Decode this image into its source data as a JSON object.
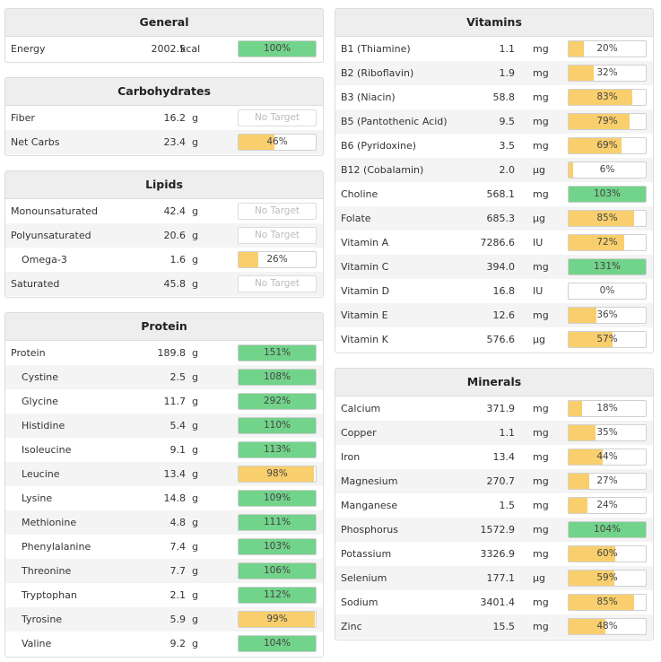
{
  "colors": {
    "green": "#72d38b",
    "yellow": "#f9cf6d",
    "empty": "#ffffff"
  },
  "general": {
    "title": "General",
    "rows": [
      {
        "name": "Energy",
        "value": "2002.5",
        "unit": "kcal",
        "pct_text": "100%",
        "pct": 100,
        "status": "green"
      }
    ]
  },
  "carbohydrates": {
    "title": "Carbohydrates",
    "rows": [
      {
        "name": "Fiber",
        "value": "16.2",
        "unit": "g",
        "pct_text": "No Target",
        "pct": 0,
        "status": "none"
      },
      {
        "name": "Net Carbs",
        "value": "23.4",
        "unit": "g",
        "pct_text": "46%",
        "pct": 46,
        "status": "yellow"
      }
    ]
  },
  "lipids": {
    "title": "Lipids",
    "rows": [
      {
        "name": "Monounsaturated",
        "value": "42.4",
        "unit": "g",
        "pct_text": "No Target",
        "pct": 0,
        "status": "none"
      },
      {
        "name": "Polyunsaturated",
        "value": "20.6",
        "unit": "g",
        "pct_text": "No Target",
        "pct": 0,
        "status": "none"
      },
      {
        "name": "Omega-3",
        "value": "1.6",
        "unit": "g",
        "pct_text": "26%",
        "pct": 26,
        "status": "yellow",
        "sub": true
      },
      {
        "name": "Saturated",
        "value": "45.8",
        "unit": "g",
        "pct_text": "No Target",
        "pct": 0,
        "status": "none"
      }
    ]
  },
  "protein": {
    "title": "Protein",
    "rows": [
      {
        "name": "Protein",
        "value": "189.8",
        "unit": "g",
        "pct_text": "151%",
        "pct": 151,
        "status": "green"
      },
      {
        "name": "Cystine",
        "value": "2.5",
        "unit": "g",
        "pct_text": "108%",
        "pct": 108,
        "status": "green",
        "sub": true
      },
      {
        "name": "Glycine",
        "value": "11.7",
        "unit": "g",
        "pct_text": "292%",
        "pct": 292,
        "status": "green",
        "sub": true
      },
      {
        "name": "Histidine",
        "value": "5.4",
        "unit": "g",
        "pct_text": "110%",
        "pct": 110,
        "status": "green",
        "sub": true
      },
      {
        "name": "Isoleucine",
        "value": "9.1",
        "unit": "g",
        "pct_text": "113%",
        "pct": 113,
        "status": "green",
        "sub": true
      },
      {
        "name": "Leucine",
        "value": "13.4",
        "unit": "g",
        "pct_text": "98%",
        "pct": 98,
        "status": "yellow",
        "sub": true
      },
      {
        "name": "Lysine",
        "value": "14.8",
        "unit": "g",
        "pct_text": "109%",
        "pct": 109,
        "status": "green",
        "sub": true
      },
      {
        "name": "Methionine",
        "value": "4.8",
        "unit": "g",
        "pct_text": "111%",
        "pct": 111,
        "status": "green",
        "sub": true
      },
      {
        "name": "Phenylalanine",
        "value": "7.4",
        "unit": "g",
        "pct_text": "103%",
        "pct": 103,
        "status": "green",
        "sub": true
      },
      {
        "name": "Threonine",
        "value": "7.7",
        "unit": "g",
        "pct_text": "106%",
        "pct": 106,
        "status": "green",
        "sub": true
      },
      {
        "name": "Tryptophan",
        "value": "2.1",
        "unit": "g",
        "pct_text": "112%",
        "pct": 112,
        "status": "green",
        "sub": true
      },
      {
        "name": "Tyrosine",
        "value": "5.9",
        "unit": "g",
        "pct_text": "99%",
        "pct": 99,
        "status": "yellow",
        "sub": true
      },
      {
        "name": "Valine",
        "value": "9.2",
        "unit": "g",
        "pct_text": "104%",
        "pct": 104,
        "status": "green",
        "sub": true
      }
    ]
  },
  "vitamins": {
    "title": "Vitamins",
    "rows": [
      {
        "name": "B1 (Thiamine)",
        "value": "1.1",
        "unit": "mg",
        "pct_text": "20%",
        "pct": 20,
        "status": "yellow"
      },
      {
        "name": "B2 (Riboflavin)",
        "value": "1.9",
        "unit": "mg",
        "pct_text": "32%",
        "pct": 32,
        "status": "yellow"
      },
      {
        "name": "B3 (Niacin)",
        "value": "58.8",
        "unit": "mg",
        "pct_text": "83%",
        "pct": 83,
        "status": "yellow"
      },
      {
        "name": "B5 (Pantothenic Acid)",
        "value": "9.5",
        "unit": "mg",
        "pct_text": "79%",
        "pct": 79,
        "status": "yellow"
      },
      {
        "name": "B6 (Pyridoxine)",
        "value": "3.5",
        "unit": "mg",
        "pct_text": "69%",
        "pct": 69,
        "status": "yellow"
      },
      {
        "name": "B12 (Cobalamin)",
        "value": "2.0",
        "unit": "µg",
        "pct_text": "6%",
        "pct": 6,
        "status": "yellow"
      },
      {
        "name": "Choline",
        "value": "568.1",
        "unit": "mg",
        "pct_text": "103%",
        "pct": 103,
        "status": "green"
      },
      {
        "name": "Folate",
        "value": "685.3",
        "unit": "µg",
        "pct_text": "85%",
        "pct": 85,
        "status": "yellow"
      },
      {
        "name": "Vitamin A",
        "value": "7286.6",
        "unit": "IU",
        "pct_text": "72%",
        "pct": 72,
        "status": "yellow"
      },
      {
        "name": "Vitamin C",
        "value": "394.0",
        "unit": "mg",
        "pct_text": "131%",
        "pct": 131,
        "status": "green"
      },
      {
        "name": "Vitamin D",
        "value": "16.8",
        "unit": "IU",
        "pct_text": "0%",
        "pct": 0,
        "status": "yellow"
      },
      {
        "name": "Vitamin E",
        "value": "12.6",
        "unit": "mg",
        "pct_text": "36%",
        "pct": 36,
        "status": "yellow"
      },
      {
        "name": "Vitamin K",
        "value": "576.6",
        "unit": "µg",
        "pct_text": "57%",
        "pct": 57,
        "status": "yellow"
      }
    ]
  },
  "minerals": {
    "title": "Minerals",
    "rows": [
      {
        "name": "Calcium",
        "value": "371.9",
        "unit": "mg",
        "pct_text": "18%",
        "pct": 18,
        "status": "yellow"
      },
      {
        "name": "Copper",
        "value": "1.1",
        "unit": "mg",
        "pct_text": "35%",
        "pct": 35,
        "status": "yellow"
      },
      {
        "name": "Iron",
        "value": "13.4",
        "unit": "mg",
        "pct_text": "44%",
        "pct": 44,
        "status": "yellow"
      },
      {
        "name": "Magnesium",
        "value": "270.7",
        "unit": "mg",
        "pct_text": "27%",
        "pct": 27,
        "status": "yellow"
      },
      {
        "name": "Manganese",
        "value": "1.5",
        "unit": "mg",
        "pct_text": "24%",
        "pct": 24,
        "status": "yellow"
      },
      {
        "name": "Phosphorus",
        "value": "1572.9",
        "unit": "mg",
        "pct_text": "104%",
        "pct": 104,
        "status": "green"
      },
      {
        "name": "Potassium",
        "value": "3326.9",
        "unit": "mg",
        "pct_text": "60%",
        "pct": 60,
        "status": "yellow"
      },
      {
        "name": "Selenium",
        "value": "177.1",
        "unit": "µg",
        "pct_text": "59%",
        "pct": 59,
        "status": "yellow"
      },
      {
        "name": "Sodium",
        "value": "3401.4",
        "unit": "mg",
        "pct_text": "85%",
        "pct": 85,
        "status": "yellow"
      },
      {
        "name": "Zinc",
        "value": "15.5",
        "unit": "mg",
        "pct_text": "48%",
        "pct": 48,
        "status": "yellow"
      }
    ]
  }
}
